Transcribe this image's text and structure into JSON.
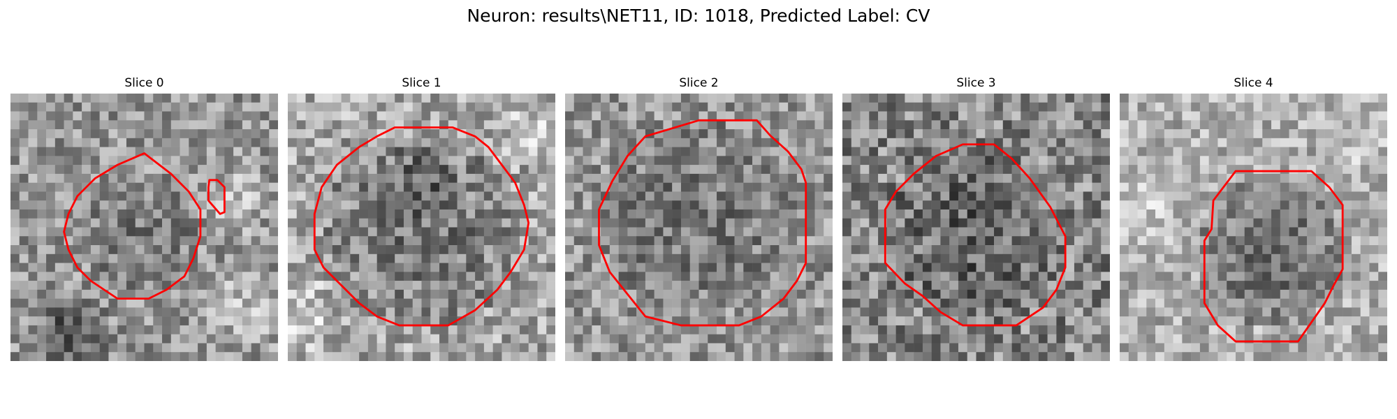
{
  "figure": {
    "title": "Neuron: results\\NET11, ID: 1018, Predicted Label: CV"
  },
  "colors": {
    "contour": "#ff0000"
  },
  "panels": [
    {
      "title": "Slice 0"
    },
    {
      "title": "Slice 1"
    },
    {
      "title": "Slice 2"
    },
    {
      "title": "Slice 3"
    },
    {
      "title": "Slice 4"
    }
  ]
}
